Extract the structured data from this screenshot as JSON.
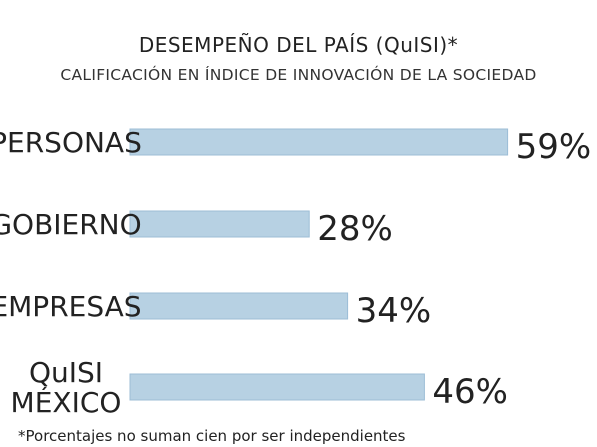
{
  "chart_data": {
    "type": "bar",
    "orientation": "horizontal",
    "title": "DESEMPEÑO DEL PAÍS (QuISI)*",
    "subtitle": "CALIFICACIÓN EN ÍNDICE DE INNOVACIÓN DE LA SOCIEDAD",
    "categories": [
      [
        "PERSONAS"
      ],
      [
        "GOBIERNO"
      ],
      [
        "EMPRESAS"
      ],
      [
        "QuISI",
        "MÉXICO"
      ]
    ],
    "values": [
      59,
      28,
      34,
      46
    ],
    "value_labels": [
      "59%",
      "28%",
      "34%",
      "46%"
    ],
    "xlim": [
      0,
      100
    ],
    "grid": false,
    "legend": "none",
    "bar_color": "#b7d1e3",
    "bar_stroke": "#9cbdd6",
    "footnote": "*Porcentajes no suman cien por ser independientes"
  }
}
